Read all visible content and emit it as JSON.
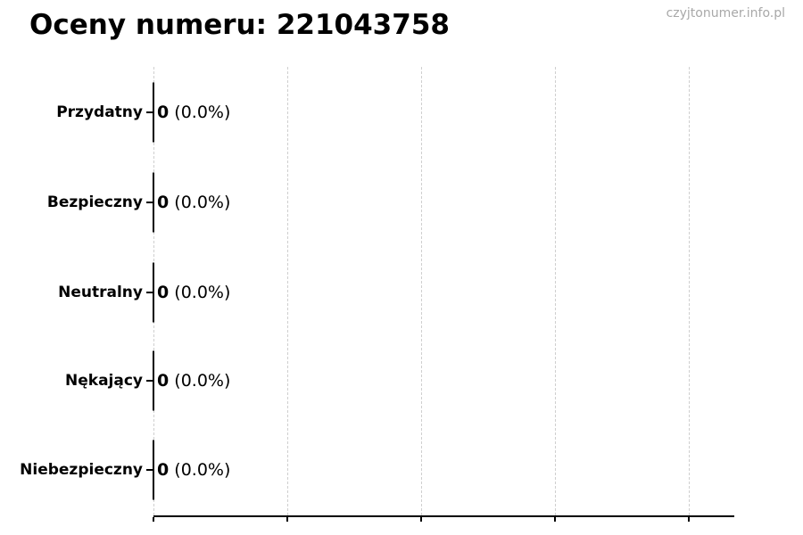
{
  "watermark": "czyjtonumer.info.pl",
  "chart_data": {
    "type": "bar",
    "orientation": "horizontal",
    "title": "Oceny numeru: 221043758",
    "categories": [
      "Przydatny",
      "Bezpieczny",
      "Neutralny",
      "Nękający",
      "Niebezpieczny"
    ],
    "values": [
      0,
      0,
      0,
      0,
      0
    ],
    "counts": [
      "0",
      "0",
      "0",
      "0",
      "0"
    ],
    "percent_labels": [
      "(0.0%)",
      "(0.0%)",
      "(0.0%)",
      "(0.0%)",
      "(0.0%)"
    ],
    "bar_label_format": "count (percent)",
    "xlabel": "",
    "ylabel": "",
    "x_tick_labels": [],
    "gridlines": {
      "axis": "x",
      "count": 5,
      "style": "dashed",
      "color": "#cfcfcf"
    },
    "legend_position": "none"
  },
  "colors": {
    "background": "#ffffff",
    "title_text": "#000000",
    "category_text": "#000000",
    "value_text": "#000000",
    "watermark_text": "#a8a8a8",
    "axis_line": "#000000",
    "gridline": "#cfcfcf",
    "bar_outline": "#000000"
  }
}
